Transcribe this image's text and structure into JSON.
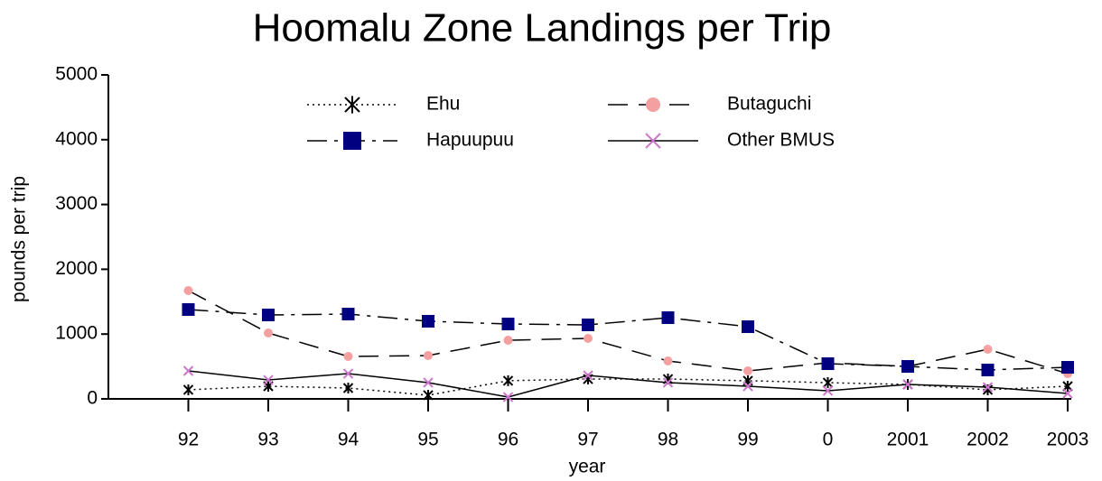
{
  "chart_data": {
    "type": "line",
    "title": "Hoomalu Zone Landings per Trip",
    "x_label": "year",
    "y_label": "pounds per trip",
    "categories": [
      null,
      "92",
      "93",
      "94",
      "95",
      "96",
      "97",
      "98",
      "99",
      "0",
      "2001",
      "2002",
      "2003"
    ],
    "ylim": [
      0,
      5000
    ],
    "yticks": [
      0,
      1000,
      2000,
      3000,
      4000,
      5000
    ],
    "grid": false,
    "series": [
      {
        "name": "Ehu",
        "color": "#000000",
        "marker": "asterisk",
        "dash": "dotted",
        "values": [
          null,
          140,
          195,
          167,
          56,
          280,
          306,
          306,
          280,
          250,
          223,
          140,
          195
        ]
      },
      {
        "name": "Butaguchi",
        "color": "#f4a0a0",
        "marker": "circle",
        "dash": "dashed",
        "values": [
          null,
          1671,
          1017,
          655,
          669,
          905,
          933,
          585,
          432,
          557,
          501,
          766,
          390
        ]
      },
      {
        "name": "Hapuupuu",
        "color": "#000080",
        "marker": "square",
        "dash": "dashdot",
        "values": [
          null,
          1379,
          1295,
          1309,
          1198,
          1156,
          1142,
          1253,
          1114,
          543,
          501,
          446,
          487
        ]
      },
      {
        "name": "Other BMUS",
        "color": "#cc77cc",
        "marker": "x",
        "dash": "solid",
        "values": [
          null,
          432,
          292,
          390,
          251,
          28,
          362,
          251,
          195,
          125,
          223,
          181,
          84
        ]
      }
    ]
  }
}
